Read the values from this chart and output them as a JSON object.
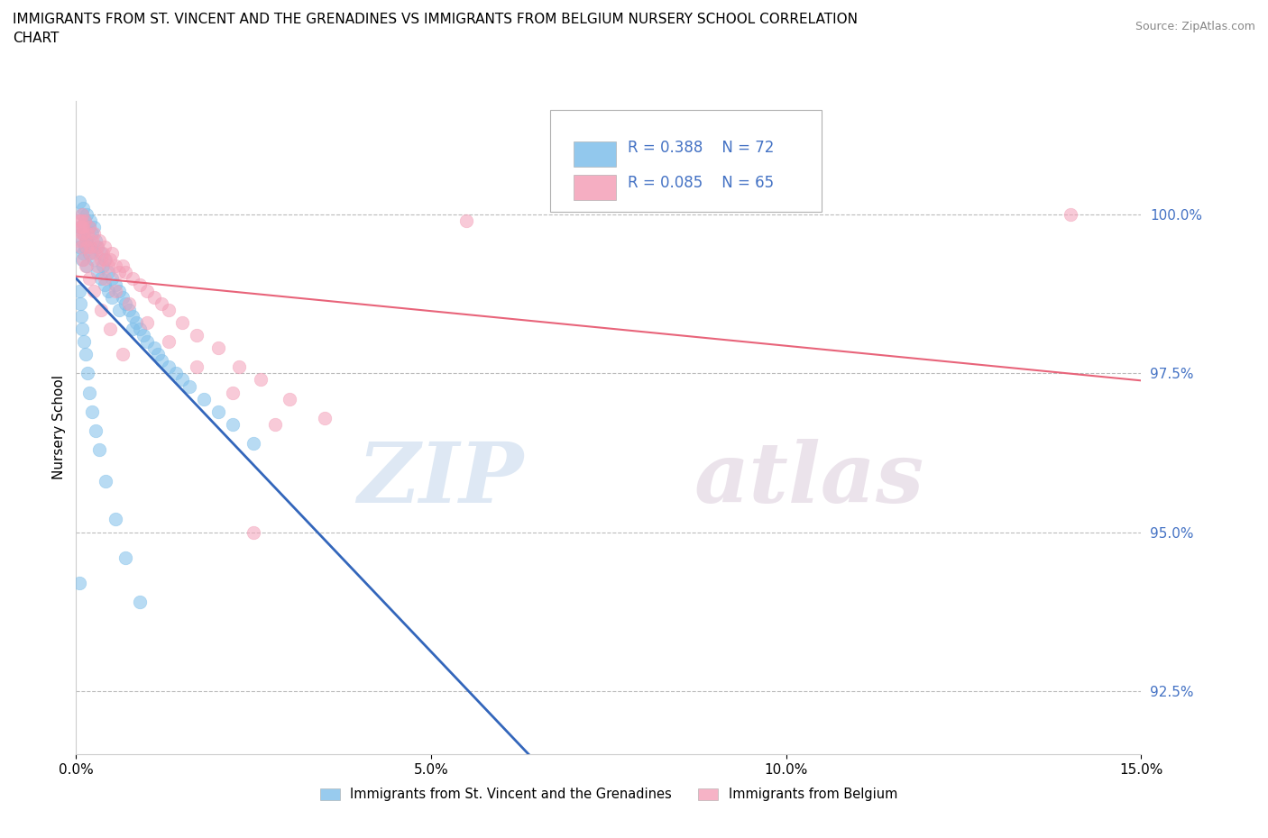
{
  "title_line1": "IMMIGRANTS FROM ST. VINCENT AND THE GRENADINES VS IMMIGRANTS FROM BELGIUM NURSERY SCHOOL CORRELATION",
  "title_line2": "CHART",
  "source": "Source: ZipAtlas.com",
  "ylabel": "Nursery School",
  "xlim": [
    0.0,
    15.0
  ],
  "ylim": [
    91.5,
    101.8
  ],
  "xticks": [
    0.0,
    5.0,
    10.0,
    15.0
  ],
  "yticks": [
    92.5,
    95.0,
    97.5,
    100.0
  ],
  "ytick_labels": [
    "92.5%",
    "95.0%",
    "97.5%",
    "100.0%"
  ],
  "xtick_labels": [
    "0.0%",
    "5.0%",
    "10.0%",
    "15.0%"
  ],
  "legend_labels": [
    "Immigrants from St. Vincent and the Grenadines",
    "Immigrants from Belgium"
  ],
  "r_blue": 0.388,
  "n_blue": 72,
  "r_pink": 0.085,
  "n_pink": 65,
  "blue_color": "#7fbfea",
  "pink_color": "#f4a0b8",
  "blue_line_color": "#3366bb",
  "pink_line_color": "#e8647a",
  "watermark_zip": "ZIP",
  "watermark_atlas": "atlas",
  "blue_x": [
    0.05,
    0.05,
    0.05,
    0.08,
    0.08,
    0.08,
    0.1,
    0.1,
    0.1,
    0.12,
    0.12,
    0.15,
    0.15,
    0.15,
    0.18,
    0.18,
    0.2,
    0.2,
    0.22,
    0.25,
    0.25,
    0.28,
    0.3,
    0.3,
    0.35,
    0.35,
    0.38,
    0.4,
    0.4,
    0.45,
    0.45,
    0.5,
    0.5,
    0.55,
    0.6,
    0.6,
    0.65,
    0.7,
    0.75,
    0.8,
    0.8,
    0.85,
    0.9,
    0.95,
    1.0,
    1.1,
    1.15,
    1.2,
    1.3,
    1.4,
    1.5,
    1.6,
    1.8,
    2.0,
    2.2,
    2.5,
    0.05,
    0.06,
    0.07,
    0.09,
    0.11,
    0.13,
    0.16,
    0.19,
    0.23,
    0.27,
    0.32,
    0.42,
    0.55,
    0.7,
    0.9,
    0.05
  ],
  "blue_y": [
    100.2,
    99.8,
    99.5,
    100.0,
    99.6,
    99.3,
    100.1,
    99.7,
    99.4,
    99.9,
    99.5,
    100.0,
    99.6,
    99.2,
    99.8,
    99.4,
    99.9,
    99.5,
    99.7,
    99.8,
    99.3,
    99.6,
    99.5,
    99.1,
    99.4,
    99.0,
    99.2,
    99.3,
    98.9,
    99.1,
    98.8,
    99.0,
    98.7,
    98.9,
    98.8,
    98.5,
    98.7,
    98.6,
    98.5,
    98.4,
    98.2,
    98.3,
    98.2,
    98.1,
    98.0,
    97.9,
    97.8,
    97.7,
    97.6,
    97.5,
    97.4,
    97.3,
    97.1,
    96.9,
    96.7,
    96.4,
    98.8,
    98.6,
    98.4,
    98.2,
    98.0,
    97.8,
    97.5,
    97.2,
    96.9,
    96.6,
    96.3,
    95.8,
    95.2,
    94.6,
    93.9,
    94.2
  ],
  "pink_x": [
    0.05,
    0.06,
    0.07,
    0.08,
    0.09,
    0.1,
    0.12,
    0.14,
    0.16,
    0.18,
    0.2,
    0.22,
    0.25,
    0.28,
    0.3,
    0.32,
    0.35,
    0.38,
    0.4,
    0.42,
    0.45,
    0.48,
    0.5,
    0.55,
    0.6,
    0.65,
    0.7,
    0.8,
    0.9,
    1.0,
    1.1,
    1.2,
    1.3,
    1.5,
    1.7,
    2.0,
    2.3,
    2.6,
    3.0,
    3.5,
    0.08,
    0.1,
    0.15,
    0.2,
    0.3,
    0.4,
    0.55,
    0.75,
    1.0,
    1.3,
    1.7,
    2.2,
    2.8,
    0.05,
    0.07,
    0.1,
    0.13,
    0.18,
    0.25,
    0.35,
    0.48,
    0.65,
    2.5,
    5.5,
    14.0
  ],
  "pink_y": [
    99.9,
    99.8,
    99.9,
    100.0,
    99.7,
    99.8,
    99.9,
    99.6,
    99.7,
    99.8,
    99.5,
    99.6,
    99.7,
    99.4,
    99.5,
    99.6,
    99.3,
    99.4,
    99.5,
    99.3,
    99.2,
    99.3,
    99.4,
    99.2,
    99.1,
    99.2,
    99.1,
    99.0,
    98.9,
    98.8,
    98.7,
    98.6,
    98.5,
    98.3,
    98.1,
    97.9,
    97.6,
    97.4,
    97.1,
    96.8,
    99.8,
    99.7,
    99.5,
    99.4,
    99.2,
    99.0,
    98.8,
    98.6,
    98.3,
    98.0,
    97.6,
    97.2,
    96.7,
    99.6,
    99.5,
    99.3,
    99.2,
    99.0,
    98.8,
    98.5,
    98.2,
    97.8,
    95.0,
    99.9,
    100.0
  ]
}
